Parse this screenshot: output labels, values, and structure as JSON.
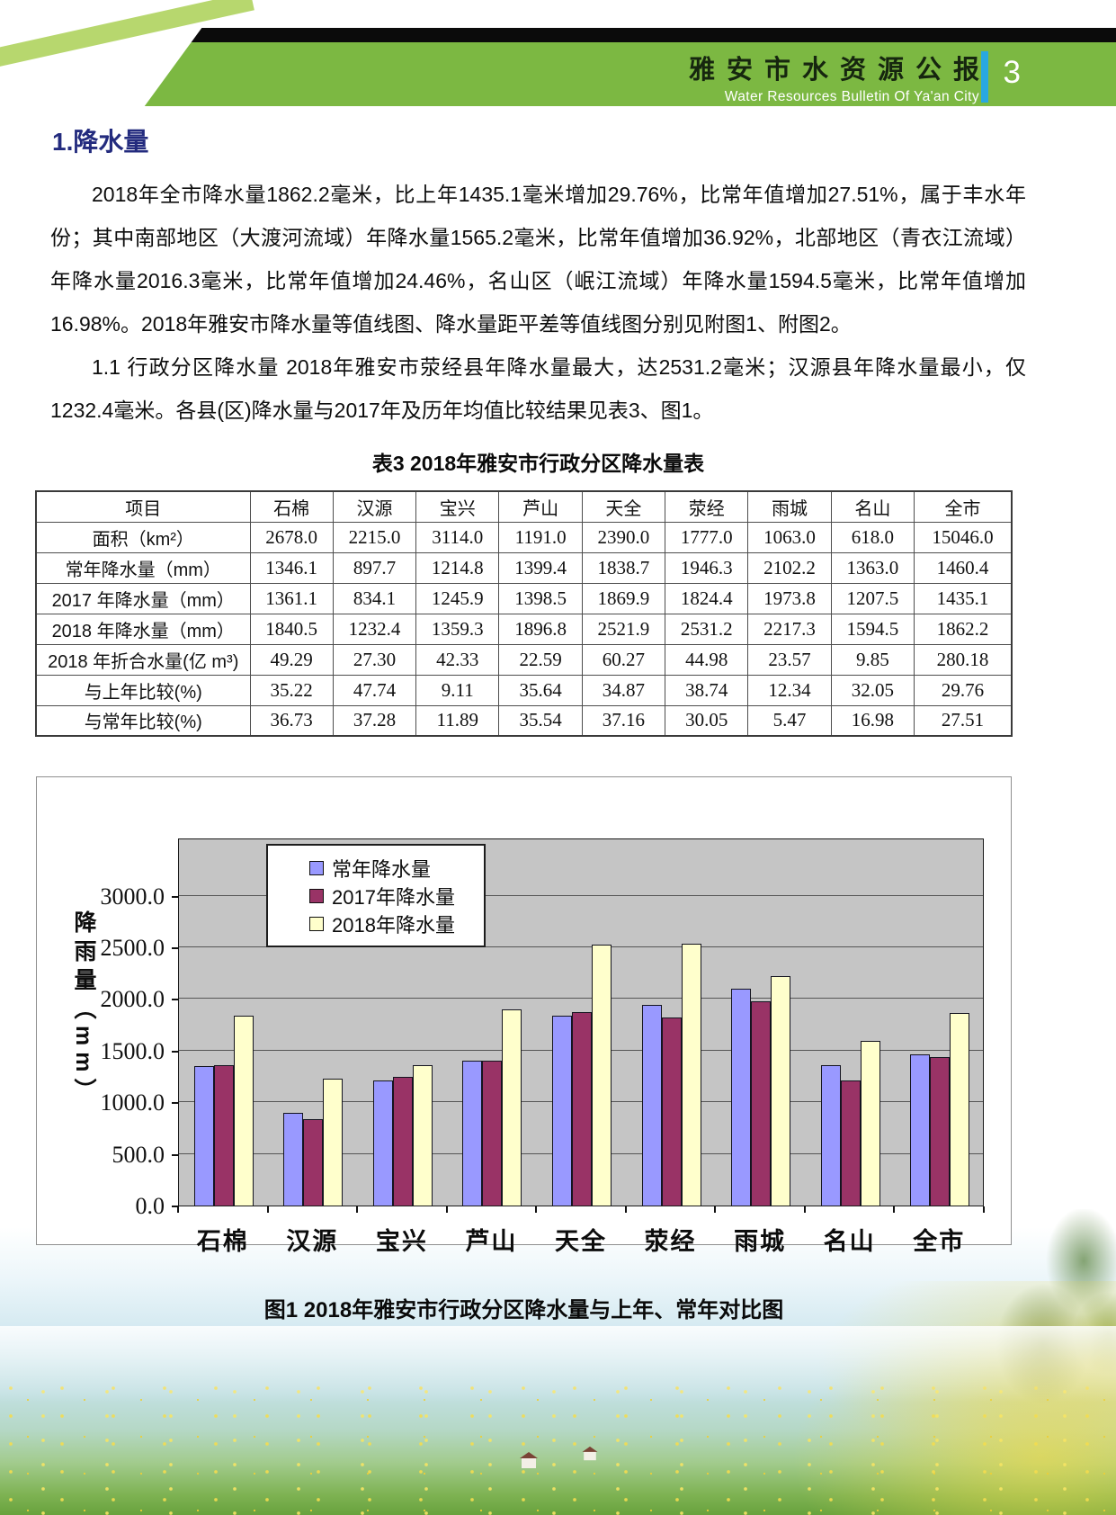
{
  "header": {
    "title_cn": "雅安市水资源公报",
    "title_en": "Water Resources Bulletin Of Ya'an City",
    "page_number": "3"
  },
  "section": {
    "heading": "1.降水量",
    "paragraph1": "2018年全市降水量1862.2毫米，比上年1435.1毫米增加29.76%，比常年值增加27.51%，属于丰水年份；其中南部地区（大渡河流域）年降水量1565.2毫米，比常年值增加36.92%，北部地区（青衣江流域）年降水量2016.3毫米，比常年值增加24.46%，名山区（岷江流域）年降水量1594.5毫米，比常年值增加16.98%。2018年雅安市降水量等值线图、降水量距平差等值线图分别见附图1、附图2。",
    "paragraph2": "1.1 行政分区降水量 2018年雅安市荥经县年降水量最大，达2531.2毫米；汉源县年降水量最小，仅1232.4毫米。各县(区)降水量与2017年及历年均值比较结果见表3、图1。"
  },
  "table": {
    "title": "表3 2018年雅安市行政分区降水量表",
    "columns": [
      "项目",
      "石棉",
      "汉源",
      "宝兴",
      "芦山",
      "天全",
      "荥经",
      "雨城",
      "名山",
      "全市"
    ],
    "rows": [
      {
        "label": "面积（km²）",
        "values": [
          "2678.0",
          "2215.0",
          "3114.0",
          "1191.0",
          "2390.0",
          "1777.0",
          "1063.0",
          "618.0",
          "15046.0"
        ]
      },
      {
        "label": "常年降水量（mm）",
        "values": [
          "1346.1",
          "897.7",
          "1214.8",
          "1399.4",
          "1838.7",
          "1946.3",
          "2102.2",
          "1363.0",
          "1460.4"
        ]
      },
      {
        "label": "2017 年降水量（mm）",
        "values": [
          "1361.1",
          "834.1",
          "1245.9",
          "1398.5",
          "1869.9",
          "1824.4",
          "1973.8",
          "1207.5",
          "1435.1"
        ]
      },
      {
        "label": "2018 年降水量（mm）",
        "values": [
          "1840.5",
          "1232.4",
          "1359.3",
          "1896.8",
          "2521.9",
          "2531.2",
          "2217.3",
          "1594.5",
          "1862.2"
        ]
      },
      {
        "label": "2018 年折合水量(亿 m³)",
        "values": [
          "49.29",
          "27.30",
          "42.33",
          "22.59",
          "60.27",
          "44.98",
          "23.57",
          "9.85",
          "280.18"
        ]
      },
      {
        "label": "与上年比较(%)",
        "values": [
          "35.22",
          "47.74",
          "9.11",
          "35.64",
          "34.87",
          "38.74",
          "12.34",
          "32.05",
          "29.76"
        ]
      },
      {
        "label": "与常年比较(%)",
        "values": [
          "36.73",
          "37.28",
          "11.89",
          "35.54",
          "37.16",
          "30.05",
          "5.47",
          "16.98",
          "27.51"
        ]
      }
    ]
  },
  "chart_data": {
    "type": "bar",
    "categories": [
      "石棉",
      "汉源",
      "宝兴",
      "芦山",
      "天全",
      "荥经",
      "雨城",
      "名山",
      "全市"
    ],
    "series": [
      {
        "name": "常年降水量",
        "color": "#9999FF",
        "values": [
          1346.1,
          897.7,
          1214.8,
          1399.4,
          1838.7,
          1946.3,
          2102.2,
          1363.0,
          1460.4
        ]
      },
      {
        "name": "2017年降水量",
        "color": "#993366",
        "values": [
          1361.1,
          834.1,
          1245.9,
          1398.5,
          1869.9,
          1824.4,
          1973.8,
          1207.5,
          1435.1
        ]
      },
      {
        "name": "2018年降水量",
        "color": "#FFFFCC",
        "values": [
          1840.5,
          1232.4,
          1359.3,
          1896.8,
          2521.9,
          2531.2,
          2217.3,
          1594.5,
          1862.2
        ]
      }
    ],
    "ylabel": "降雨量（mm）",
    "xlabel": "",
    "ylim": [
      0,
      3000
    ],
    "ytick_step": 500,
    "ytick_labels": [
      "0.0",
      "500.0",
      "1000.0",
      "1500.0",
      "2000.0",
      "2500.0",
      "3000.0"
    ],
    "grid": true,
    "legend_position": "inside-top-left",
    "plot_background": "#c5c5c5"
  },
  "figure": {
    "caption": "图1 2018年雅安市行政分区降水量与上年、常年对比图"
  }
}
